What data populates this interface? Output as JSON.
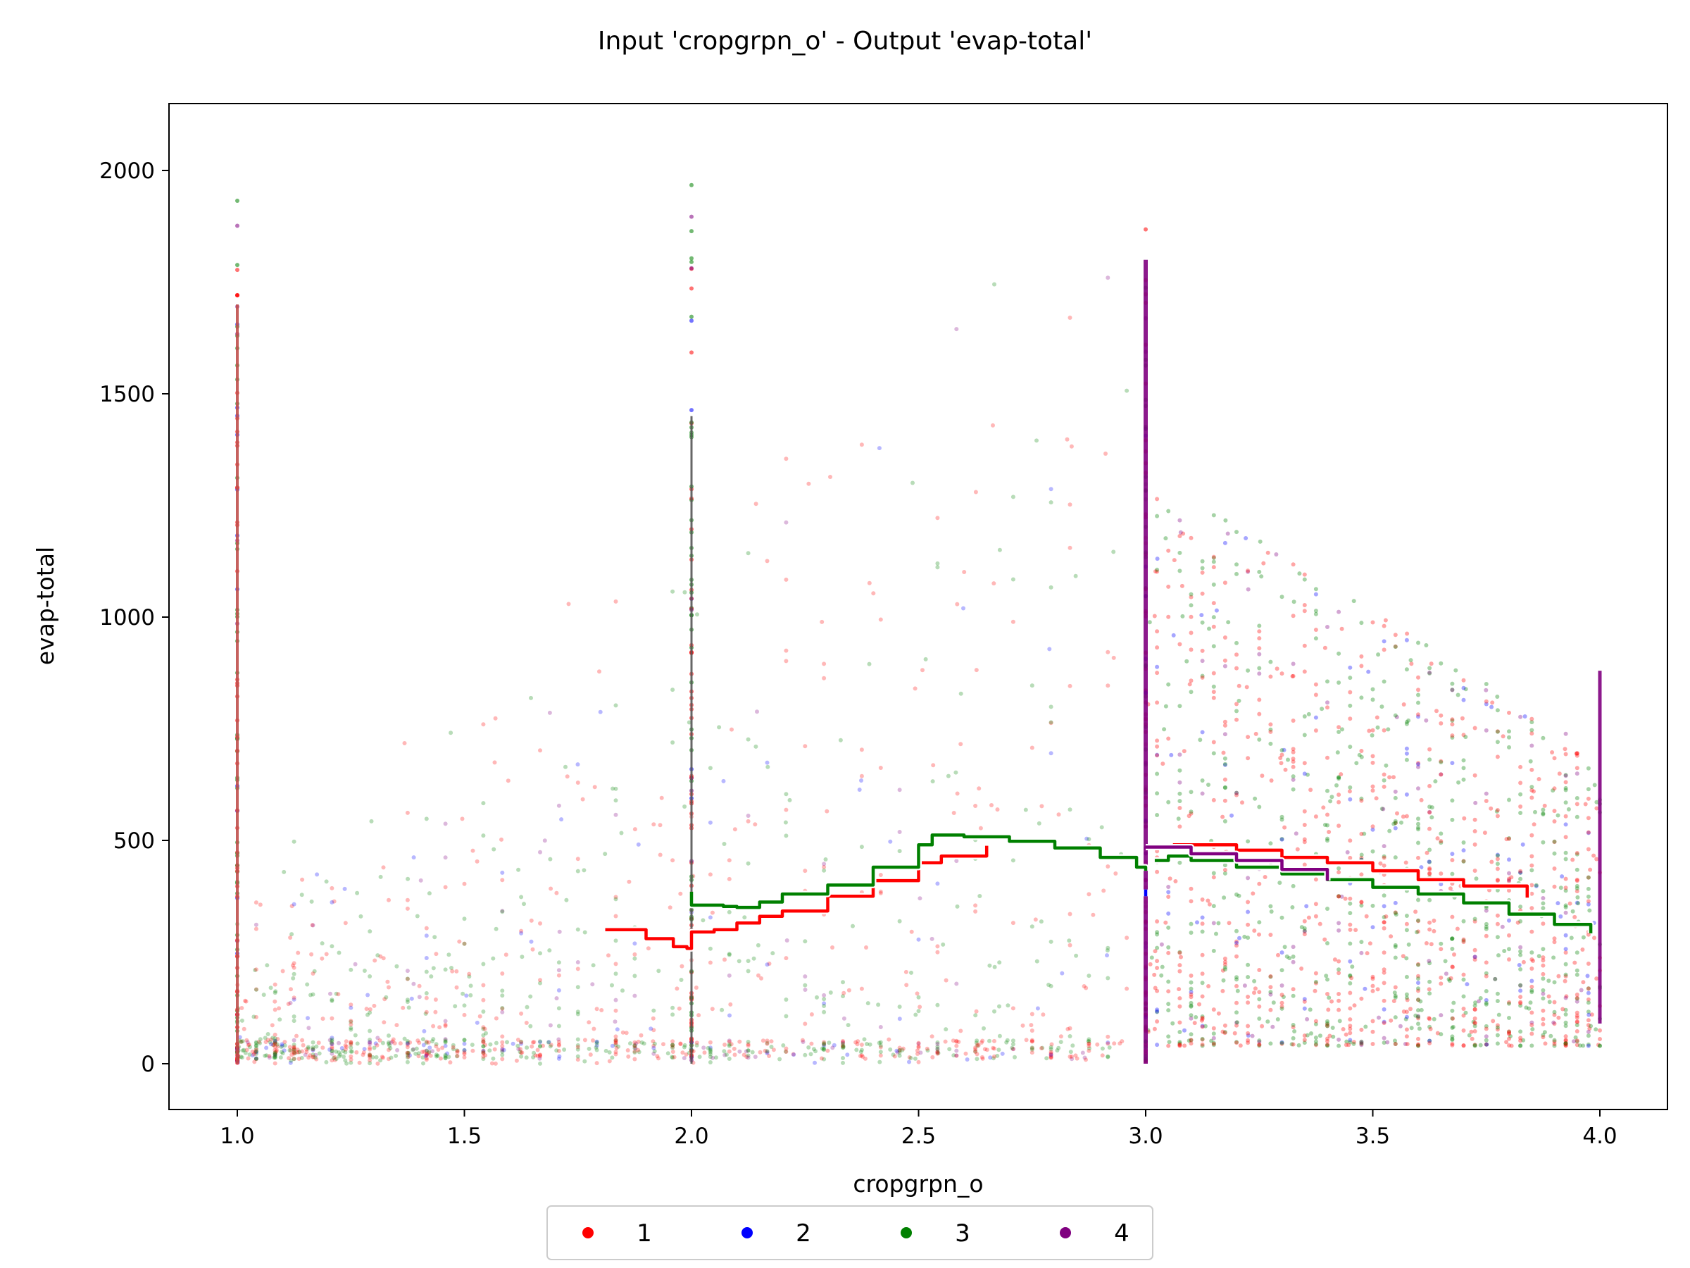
{
  "chart_data": {
    "type": "scatter",
    "title": "Input 'cropgrpn_o' - Output 'evap-total'",
    "xlabel": "cropgrpn_o",
    "ylabel": "evap-total",
    "xlim": [
      0.85,
      4.15
    ],
    "ylim": [
      -100,
      2150
    ],
    "x_ticks": [
      1.0,
      1.5,
      2.0,
      2.5,
      3.0,
      3.5,
      4.0
    ],
    "x_tick_labels": [
      "1.0",
      "1.5",
      "2.0",
      "2.5",
      "3.0",
      "3.5",
      "4.0"
    ],
    "y_ticks": [
      0,
      500,
      1000,
      1500,
      2000
    ],
    "y_tick_labels": [
      "0",
      "500",
      "1000",
      "1500",
      "2000"
    ],
    "grid": false,
    "legend_position": "bottom-center",
    "series": [
      {
        "name": "1",
        "color": "#ff0000",
        "trend": [
          [
            1.81,
            300
          ],
          [
            1.9,
            280
          ],
          [
            1.96,
            262
          ],
          [
            1.99,
            258
          ],
          [
            2.0,
            295
          ],
          [
            2.05,
            300
          ],
          [
            2.1,
            315
          ],
          [
            2.15,
            330
          ],
          [
            2.2,
            342
          ],
          [
            2.3,
            375
          ],
          [
            2.4,
            410
          ],
          [
            2.5,
            450
          ],
          [
            2.55,
            465
          ],
          [
            2.65,
            488
          ]
        ],
        "trend2": [
          [
            3.06,
            490
          ],
          [
            3.2,
            478
          ],
          [
            3.3,
            462
          ],
          [
            3.4,
            450
          ],
          [
            3.5,
            432
          ],
          [
            3.6,
            412
          ],
          [
            3.7,
            398
          ],
          [
            3.84,
            372
          ]
        ]
      },
      {
        "name": "2",
        "color": "#0000ff",
        "trend": [
          [
            3.0,
            375
          ],
          [
            3.0,
            390
          ]
        ]
      },
      {
        "name": "3",
        "color": "#008000",
        "trend": [
          [
            2.0,
            385
          ],
          [
            2.0,
            355
          ],
          [
            2.07,
            352
          ],
          [
            2.1,
            350
          ],
          [
            2.15,
            362
          ],
          [
            2.2,
            380
          ],
          [
            2.3,
            400
          ],
          [
            2.4,
            440
          ],
          [
            2.5,
            490
          ],
          [
            2.53,
            512
          ],
          [
            2.6,
            508
          ],
          [
            2.7,
            498
          ],
          [
            2.8,
            483
          ],
          [
            2.9,
            462
          ],
          [
            2.98,
            440
          ],
          [
            3.0,
            432
          ]
        ],
        "trend2": [
          [
            3.02,
            455
          ],
          [
            3.05,
            465
          ],
          [
            3.1,
            455
          ],
          [
            3.2,
            440
          ],
          [
            3.3,
            425
          ],
          [
            3.4,
            412
          ],
          [
            3.5,
            395
          ],
          [
            3.6,
            380
          ],
          [
            3.7,
            360
          ],
          [
            3.8,
            335
          ],
          [
            3.9,
            312
          ],
          [
            3.98,
            292
          ]
        ]
      },
      {
        "name": "4",
        "color": "#800080",
        "trend": [
          [
            3.0,
            485
          ],
          [
            3.1,
            470
          ],
          [
            3.2,
            455
          ],
          [
            3.3,
            435
          ],
          [
            3.4,
            410
          ]
        ]
      }
    ]
  },
  "legend": {
    "items": [
      {
        "label": "1",
        "color": "#ff0000"
      },
      {
        "label": "2",
        "color": "#0000ff"
      },
      {
        "label": "3",
        "color": "#008000"
      },
      {
        "label": "4",
        "color": "#800080"
      }
    ]
  }
}
